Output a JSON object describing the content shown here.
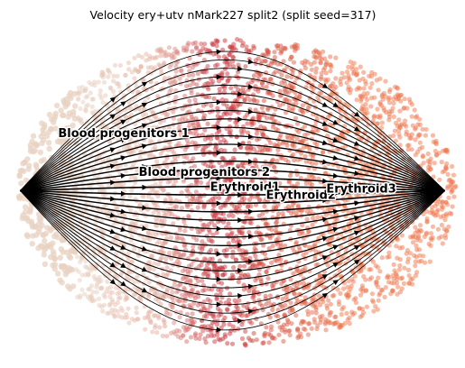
{
  "chart_data": {
    "type": "scatter",
    "title": "Velocity ery+utv nMark227 split2 (split seed=317)",
    "xlabel": "",
    "ylabel": "",
    "grid": false,
    "axes_visible": false,
    "overlay": "velocity-streamlines",
    "clusters": [
      {
        "name": "Blood progenitors 1",
        "x": -0.78,
        "y": 0.35,
        "color": "#e8d2c2"
      },
      {
        "name": "Blood progenitors 2",
        "x": -0.42,
        "y": 0.12,
        "color": "#e6b4a4"
      },
      {
        "name": "Erythroid1",
        "x": -0.1,
        "y": 0.03,
        "color": "#c8323c"
      },
      {
        "name": "Erythroid2",
        "x": 0.15,
        "y": -0.02,
        "color": "#d95a46"
      },
      {
        "name": "Erythroid3",
        "x": 0.42,
        "y": 0.02,
        "color": "#f0784e"
      }
    ],
    "flow_direction": "left-to-right",
    "colors": {
      "stream": "#000000",
      "label_halo": "#ffffff"
    }
  }
}
